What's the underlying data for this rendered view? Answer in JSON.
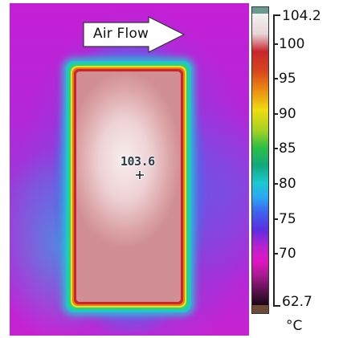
{
  "thermal_image": {
    "annotation": "Air Flow",
    "spot_temperature": "103.6"
  },
  "color_scale": {
    "max_label": "104.2",
    "min_label": "62.7",
    "unit": "°C",
    "ticks": [
      {
        "label": "100",
        "value": 100
      },
      {
        "label": "95",
        "value": 95
      },
      {
        "label": "90",
        "value": 90
      },
      {
        "label": "85",
        "value": 85
      },
      {
        "label": "80",
        "value": 80
      },
      {
        "label": "75",
        "value": 75
      },
      {
        "label": "70",
        "value": 70
      }
    ],
    "range": [
      62.7,
      104.2
    ]
  }
}
